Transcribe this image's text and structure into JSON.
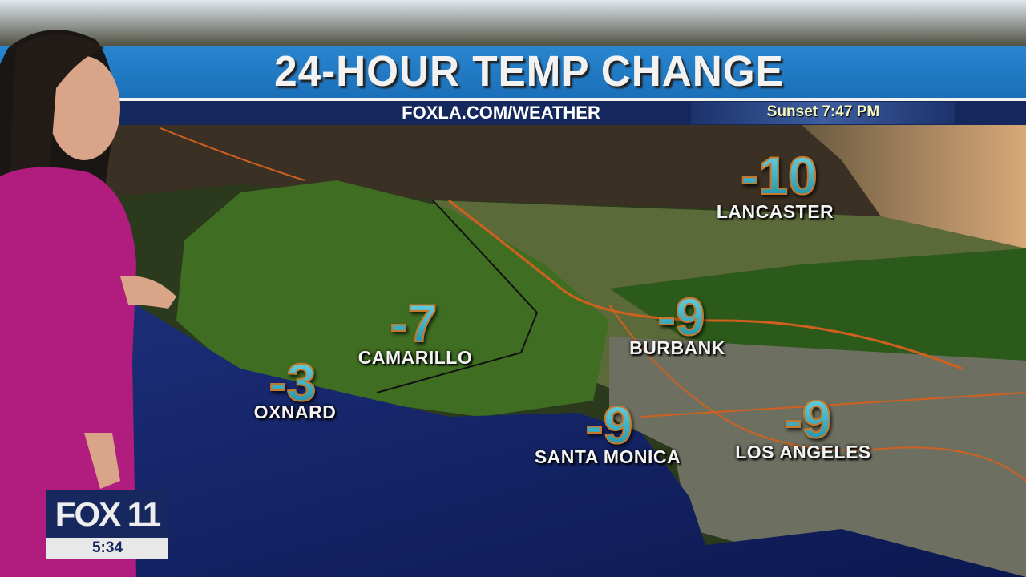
{
  "header": {
    "title": "24-HOUR TEMP CHANGE",
    "url": "FOXLA.COM/WEATHER",
    "sunset": "Sunset 7:47 PM"
  },
  "locations": [
    {
      "city": "LANCASTER",
      "change": "-10"
    },
    {
      "city": "CAMARILLO",
      "change": "-7"
    },
    {
      "city": "OXNARD",
      "change": "-3"
    },
    {
      "city": "BURBANK",
      "change": "-9"
    },
    {
      "city": "SANTA MONICA",
      "change": "-9"
    },
    {
      "city": "LOS ANGELES",
      "change": "-9"
    }
  ],
  "logo": {
    "brand": "FOX 11",
    "time": "5:34"
  },
  "colors": {
    "banner_blue": "#1a75c0",
    "banner_navy": "#14285e",
    "temp_fill": "#2fb6c9",
    "temp_outline": "#c8782a"
  }
}
